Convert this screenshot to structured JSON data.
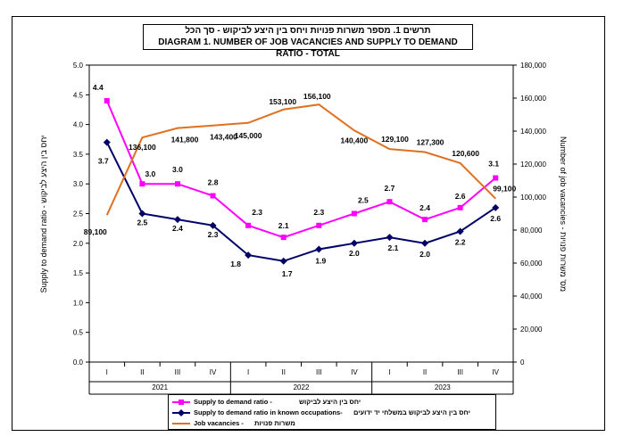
{
  "title": {
    "hebrew": "תרשים 1. מספר משרות פנויות ויחס בין היצע לביקוש - סך הכל",
    "english": "DIAGRAM 1. NUMBER OF JOB VACANCIES AND SUPPLY TO DEMAND RATIO - TOTAL"
  },
  "left_axis_label": {
    "hebrew": "יחס בין היצע לביקוש",
    "english": "Supply to demand ratio - "
  },
  "right_axis_label": {
    "english": "Number of job vacancies - ",
    "hebrew": "מס' משרות פנויות"
  },
  "legend": [
    {
      "english": "Supply to demand ratio - ",
      "hebrew": "יחס בין היצע לביקוש",
      "color": "#ff00ff",
      "marker": "square"
    },
    {
      "english": "Supply to demand ratio in known occupations-",
      "hebrew": "יחס בין היצע לביקוש במשלחי יד ידועים",
      "color": "#000066",
      "marker": "diamond"
    },
    {
      "english": "Job vacancies - ",
      "hebrew": "משרות פנויות",
      "color": "#e07020",
      "marker": "none"
    }
  ],
  "chart_data": {
    "type": "line",
    "quarters": [
      "I",
      "II",
      "III",
      "IV",
      "I",
      "II",
      "III",
      "IV",
      "I",
      "II",
      "III",
      "IV"
    ],
    "years": [
      "2021",
      "2022",
      "2023"
    ],
    "y_left": {
      "min": 0.0,
      "max": 5.0,
      "step": 0.5,
      "ticks": [
        "0.0",
        "0.5",
        "1.0",
        "1.5",
        "2.0",
        "2.5",
        "3.0",
        "3.5",
        "4.0",
        "4.5",
        "5.0"
      ]
    },
    "y_right": {
      "min": 0,
      "max": 180000,
      "step": 20000,
      "ticks": [
        "0",
        "20,000",
        "40,000",
        "60,000",
        "80,000",
        "100,000",
        "120,000",
        "140,000",
        "160,000",
        "180,000"
      ]
    },
    "grid": false,
    "legend_position": "bottom",
    "series": [
      {
        "name": "Supply to demand ratio",
        "axis": "left",
        "color": "#ff00ff",
        "values": [
          4.4,
          3.0,
          3.0,
          2.8,
          2.3,
          2.1,
          2.3,
          2.5,
          2.7,
          2.4,
          2.6,
          3.1
        ],
        "labels": [
          "4.4",
          "3.0",
          "3.0",
          "2.8",
          "2.3",
          "2.1",
          "2.3",
          "2.5",
          "2.7",
          "2.4",
          "2.6",
          "3.1"
        ]
      },
      {
        "name": "Supply to demand ratio in known occupations",
        "axis": "left",
        "color": "#000066",
        "values": [
          3.7,
          2.5,
          2.4,
          2.3,
          1.8,
          1.7,
          1.9,
          2.0,
          2.1,
          2.0,
          2.2,
          2.6
        ],
        "labels": [
          "3.7",
          "2.5",
          "2.4",
          "2.3",
          "1.8",
          "1.7",
          "1.9",
          "2.0",
          "2.1",
          "2.0",
          "2.2",
          "2.6"
        ]
      },
      {
        "name": "Job vacancies",
        "axis": "right",
        "color": "#e07020",
        "values": [
          89100,
          136100,
          141800,
          143400,
          145000,
          153100,
          156100,
          140400,
          129100,
          127300,
          120600,
          99100
        ],
        "labels": [
          "89,100",
          "136,100",
          "141,800",
          "143,400",
          "145,000",
          "153,100",
          "156,100",
          "140,400",
          "129,100",
          "127,300",
          "120,600",
          "99,100"
        ]
      }
    ]
  }
}
